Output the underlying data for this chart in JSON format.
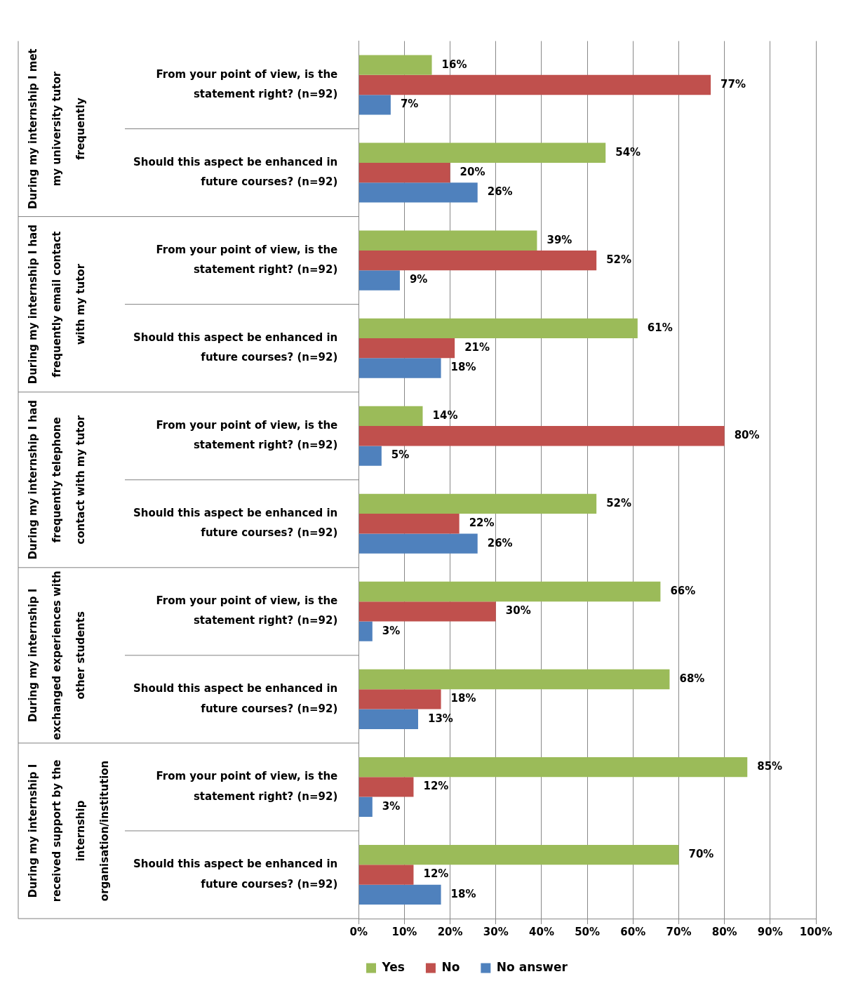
{
  "chart_data": {
    "type": "bar",
    "orientation": "horizontal",
    "categories": [
      "From your point of view, is the statement right? (n=92)",
      "Should this aspect be enhanced in future courses? (n=92)",
      "From your point of view, is the statement right? (n=92)",
      "Should this aspect be enhanced in future courses? (n=92)",
      "From your point of view, is the statement right? (n=92)",
      "Should this aspect be enhanced in future courses? (n=92)",
      "From your point of view, is the statement right? (n=92)",
      "Should this aspect be enhanced in future courses? (n=92)",
      "From your point of view, is the statement right? (n=92)",
      "Should this aspect be enhanced in future courses? (n=92)"
    ],
    "series": [
      {
        "name": "Yes",
        "color": "#9bbb59",
        "values": [
          16,
          54,
          39,
          61,
          14,
          52,
          66,
          68,
          85,
          70
        ],
        "value_labels": [
          "16%",
          "54%",
          "39%",
          "61%",
          "14%",
          "52%",
          "66%",
          "68%",
          "85%",
          "70%"
        ]
      },
      {
        "name": "No",
        "color": "#c0504d",
        "values": [
          77,
          20,
          52,
          21,
          80,
          22,
          30,
          18,
          12,
          12
        ],
        "value_labels": [
          "77%",
          "20%",
          "52%",
          "21%",
          "80%",
          "22%",
          "30%",
          "18%",
          "12%",
          "12%"
        ]
      },
      {
        "name": "No answer",
        "color": "#4f81bd",
        "values": [
          7,
          26,
          9,
          18,
          5,
          26,
          3,
          13,
          3,
          18
        ],
        "value_labels": [
          "7%",
          "26%",
          "9%",
          "18%",
          "5%",
          "26%",
          "3%",
          "13%",
          "3%",
          "18%"
        ]
      }
    ],
    "annotations": [
      "During my internship I met my university tutor frequently",
      "During my internship I had frequently email contact with my tutor",
      "During my internship I had frequently telephone contact with my tutor",
      "During my internship I exchanged experiences with other students",
      "During my internship I received support by the internship organisation/institution"
    ],
    "xlim": [
      0,
      100
    ],
    "xticks": [
      {
        "value": 0,
        "label": "0%"
      },
      {
        "value": 10,
        "label": "10%"
      },
      {
        "value": 20,
        "label": "20%"
      },
      {
        "value": 30,
        "label": "30%"
      },
      {
        "value": 40,
        "label": "40%"
      },
      {
        "value": 50,
        "label": "50%"
      },
      {
        "value": 60,
        "label": "60%"
      },
      {
        "value": 70,
        "label": "70%"
      },
      {
        "value": 80,
        "label": "80%"
      },
      {
        "value": 90,
        "label": "90%"
      },
      {
        "value": 100,
        "label": "100%"
      }
    ],
    "grid": "x",
    "legend": "bottom"
  }
}
